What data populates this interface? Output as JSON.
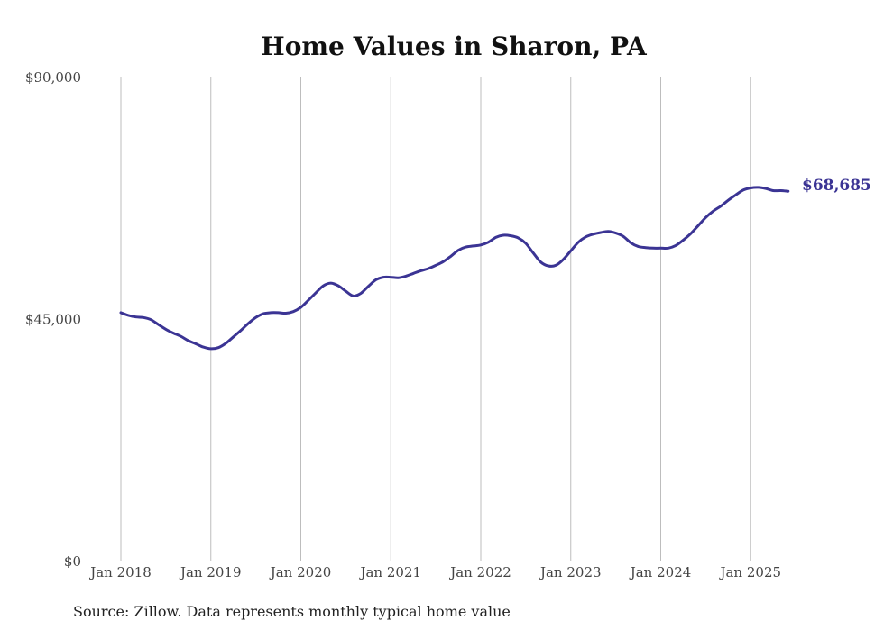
{
  "chart_data": {
    "type": "line",
    "title": "Home Values in Sharon, PA",
    "source": "Source: Zillow. Data represents monthly typical home value",
    "ylim": [
      0,
      90000
    ],
    "xlim": [
      "2018-01",
      "2025-06"
    ],
    "y_ticks": [
      {
        "value": 90000,
        "label": "$90,000"
      },
      {
        "value": 45000,
        "label": "$45,000"
      },
      {
        "value": 0,
        "label": "$0"
      }
    ],
    "x_ticks": [
      {
        "value": "2018-01",
        "label": "Jan 2018"
      },
      {
        "value": "2019-01",
        "label": "Jan 2019"
      },
      {
        "value": "2020-01",
        "label": "Jan 2020"
      },
      {
        "value": "2021-01",
        "label": "Jan 2021"
      },
      {
        "value": "2022-01",
        "label": "Jan 2022"
      },
      {
        "value": "2023-01",
        "label": "Jan 2023"
      },
      {
        "value": "2024-01",
        "label": "Jan 2024"
      },
      {
        "value": "2025-01",
        "label": "Jan 2025"
      }
    ],
    "grid": {
      "vertical": true,
      "horizontal": false
    },
    "line_color": "#3b3494",
    "end_label": "$68,685",
    "series": [
      {
        "x": [
          "2018-01",
          "2018-02",
          "2018-03",
          "2018-04",
          "2018-05",
          "2018-06",
          "2018-07",
          "2018-08",
          "2018-09",
          "2018-10",
          "2018-11",
          "2018-12",
          "2019-01",
          "2019-02",
          "2019-03",
          "2019-04",
          "2019-05",
          "2019-06",
          "2019-07",
          "2019-08",
          "2019-09",
          "2019-10",
          "2019-11",
          "2019-12",
          "2020-01",
          "2020-02",
          "2020-03",
          "2020-04",
          "2020-05",
          "2020-06",
          "2020-07",
          "2020-08",
          "2020-09",
          "2020-10",
          "2020-11",
          "2020-12",
          "2021-01",
          "2021-02",
          "2021-03",
          "2021-04",
          "2021-05",
          "2021-06",
          "2021-07",
          "2021-08",
          "2021-09",
          "2021-10",
          "2021-11",
          "2021-12",
          "2022-01",
          "2022-02",
          "2022-03",
          "2022-04",
          "2022-05",
          "2022-06",
          "2022-07",
          "2022-08",
          "2022-09",
          "2022-10",
          "2022-11",
          "2022-12",
          "2023-01",
          "2023-02",
          "2023-03",
          "2023-04",
          "2023-05",
          "2023-06",
          "2023-07",
          "2023-08",
          "2023-09",
          "2023-10",
          "2023-11",
          "2023-12",
          "2024-01",
          "2024-02",
          "2024-03",
          "2024-04",
          "2024-05",
          "2024-06",
          "2024-07",
          "2024-08",
          "2024-09",
          "2024-10",
          "2024-11",
          "2024-12",
          "2025-01",
          "2025-02",
          "2025-03",
          "2025-04",
          "2025-05",
          "2025-06"
        ],
        "values": [
          46100,
          45600,
          45300,
          45200,
          44800,
          43900,
          43000,
          42300,
          41700,
          40900,
          40300,
          39700,
          39400,
          39600,
          40400,
          41600,
          42800,
          44100,
          45200,
          45900,
          46100,
          46100,
          46000,
          46300,
          47100,
          48400,
          49800,
          51100,
          51600,
          51100,
          50100,
          49200,
          49700,
          51000,
          52200,
          52700,
          52700,
          52600,
          52900,
          53400,
          53900,
          54300,
          54900,
          55600,
          56600,
          57700,
          58300,
          58500,
          58700,
          59200,
          60100,
          60500,
          60400,
          60000,
          59000,
          57200,
          55500,
          54800,
          54900,
          56000,
          57600,
          59200,
          60200,
          60700,
          61000,
          61200,
          60900,
          60300,
          59100,
          58400,
          58200,
          58100,
          58100,
          58100,
          58600,
          59600,
          60800,
          62300,
          63800,
          65000,
          65900,
          67000,
          68000,
          68900,
          69300,
          69400,
          69200,
          68800,
          68800,
          68685
        ]
      }
    ]
  }
}
